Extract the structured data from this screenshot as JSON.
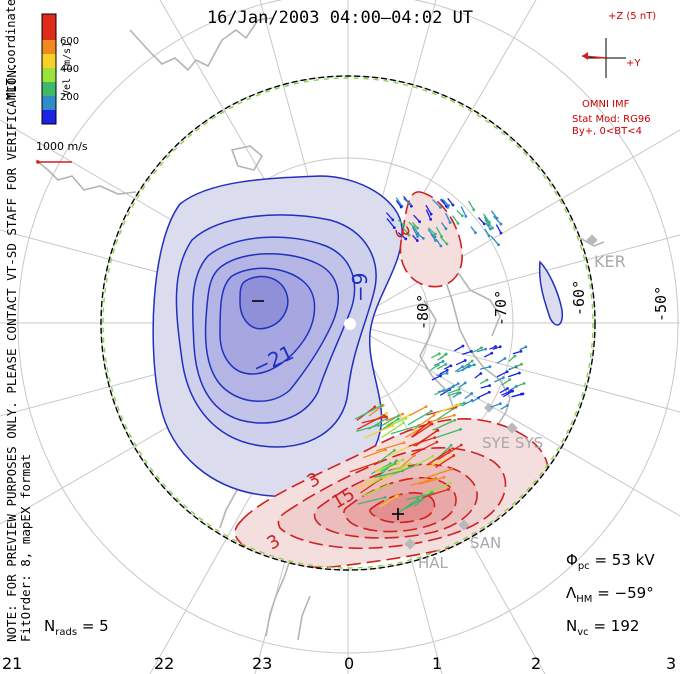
{
  "title": "16/Jan/2003 04:00–04:02 UT",
  "notes": {
    "preview": "NOTE: FOR PREVIEW PURPOSES ONLY. PLEASE CONTACT VT-SD STAFF FOR VERIFICATION.",
    "fit": "FitOrder: 8, mapEX format",
    "coords": "MLT coordinates"
  },
  "colorbar": {
    "title": "Vel [m/s]",
    "ticks": [
      "600",
      "400",
      "200"
    ],
    "colors": [
      "#1a23e6",
      "#2f8cc8",
      "#3fb86b",
      "#9be23b",
      "#f6d12a",
      "#f08a1c",
      "#e02a1a"
    ]
  },
  "vector_scale": "1000 m/s",
  "imf": {
    "z_label": "+Z (5 nT)",
    "y_label": "+Y",
    "source": "OMNI IMF",
    "model_line1": "Stat Mod: RG96",
    "model_line2": "By+, 0<BT<4"
  },
  "mlt_labels": [
    "21",
    "22",
    "23",
    "0",
    "1",
    "2",
    "3"
  ],
  "lat_labels": [
    "-80°",
    "-70°",
    "-60°",
    "-50°"
  ],
  "stations": [
    "KER",
    "SYE SYS",
    "SAN",
    "HAL"
  ],
  "contours": {
    "negative_labels": [
      "−9",
      "−21"
    ],
    "positive_labels": [
      "3",
      "15",
      "3",
      "3"
    ],
    "min_marker": "−",
    "max_marker": "+"
  },
  "stats": {
    "phi_symbol": "Φ",
    "phi_sub": "pc",
    "phi_value": "= 53 kV",
    "lambda_symbol": "Λ",
    "lambda_sub": "HM",
    "lambda_value": "= −59°",
    "nvc_symbol": "N",
    "nvc_sub": "vc",
    "nvc_value": "= 192",
    "nrads_symbol": "N",
    "nrads_sub": "rads",
    "nrads_value": "= 5"
  },
  "map_colors": {
    "negative": "#2030c0",
    "positive": "#d02020",
    "grid": "#c8c8c8",
    "coast": "#b4b4b4"
  }
}
